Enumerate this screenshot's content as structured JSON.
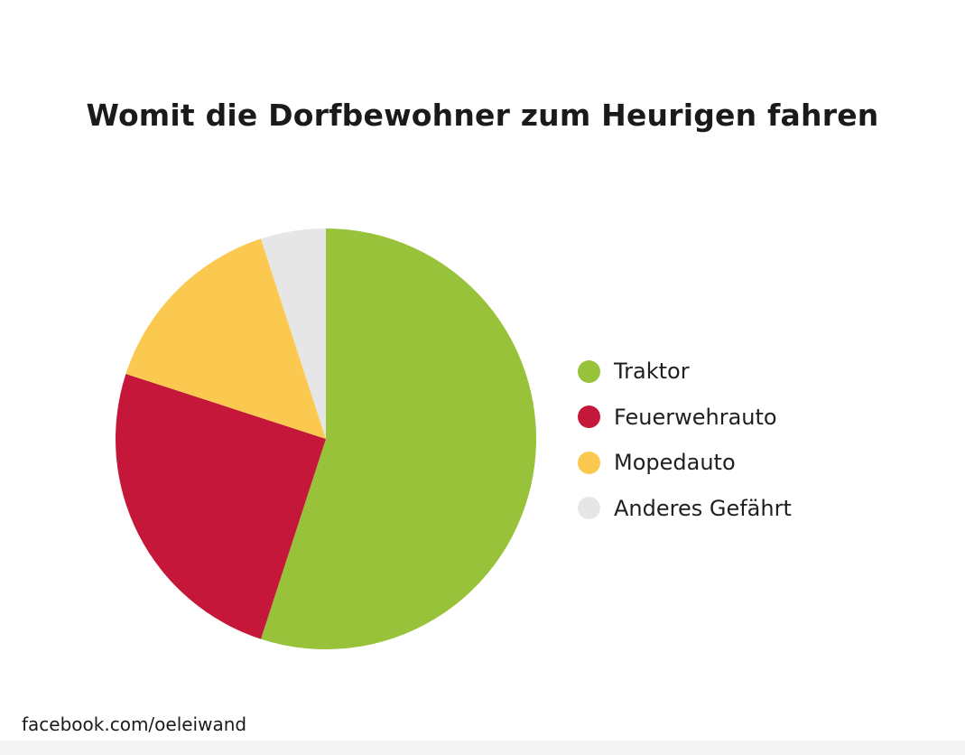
{
  "chart_data": {
    "type": "pie",
    "title": "Womit die Dorfbewohner zum Heurigen fahren",
    "categories": [
      "Traktor",
      "Feuerwehrauto",
      "Mopedauto",
      "Anderes Gefährt"
    ],
    "values": [
      55,
      25,
      15,
      5
    ],
    "colors": [
      "#97c23a",
      "#c41739",
      "#fbc94f",
      "#e6e6e6"
    ],
    "legend_placement": "right",
    "start_angle": "top, clockwise"
  },
  "footer": {
    "credit": "facebook.com/oeleiwand"
  }
}
